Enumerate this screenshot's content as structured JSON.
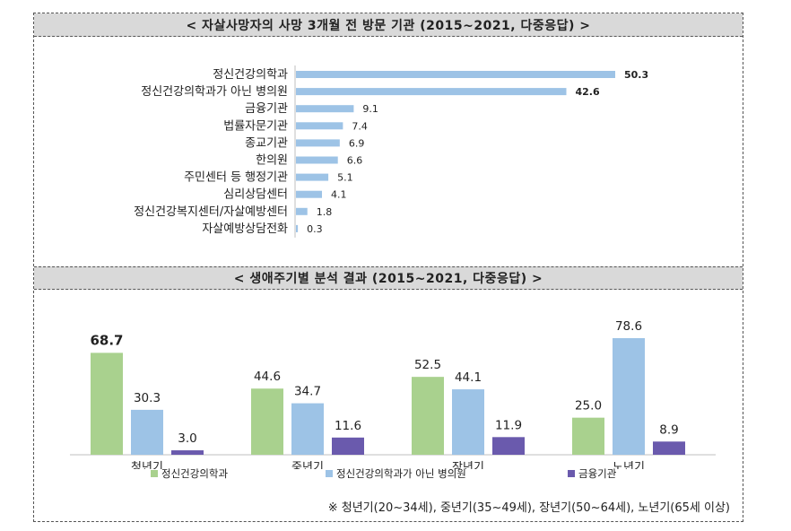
{
  "chart_data": [
    {
      "type": "bar",
      "orientation": "horizontal",
      "title": "< 자살사망자의 사망 3개월 전 방문 기관 (2015~2021, 다중응답) >",
      "categories": [
        "정신건강의학과",
        "정신건강의학과가 아닌 병의원",
        "금융기관",
        "법률자문기관",
        "종교기관",
        "한의원",
        "주민센터 등 행정기관",
        "심리상담센터",
        "정신건강복지센터/자살예방센터",
        "자살예방상담전화"
      ],
      "values": [
        50.3,
        42.6,
        9.1,
        7.4,
        6.9,
        6.6,
        5.1,
        4.1,
        1.8,
        0.3
      ],
      "value_labels": [
        "50.3",
        "42.6",
        "9.1",
        "7.4",
        "6.9",
        "6.6",
        "5.1",
        "4.1",
        "1.8",
        "0.3"
      ],
      "bold_top_labels": 2,
      "xlim": [
        0,
        55
      ],
      "color": "#9dc3e6"
    },
    {
      "type": "bar",
      "title": "< 생애주기별 분석 결과 (2015~2021, 다중응답) >",
      "categories": [
        "청년기",
        "중년기",
        "장년기",
        "노년기"
      ],
      "series": [
        {
          "name": "정신건강의학과",
          "values": [
            68.7,
            44.6,
            52.5,
            25.0
          ],
          "labels": [
            "68.7",
            "44.6",
            "52.5",
            "25.0"
          ],
          "color": "#a9d18e"
        },
        {
          "name": "정신건강의학과가 아닌 병의원",
          "values": [
            30.3,
            34.7,
            44.1,
            78.6
          ],
          "labels": [
            "30.3",
            "34.7",
            "44.1",
            "78.6"
          ],
          "color": "#9dc3e6"
        },
        {
          "name": "금융기관",
          "values": [
            3.0,
            11.6,
            11.9,
            8.9
          ],
          "labels": [
            "3.0",
            "11.6",
            "11.9",
            "8.9"
          ],
          "color": "#6a5aad"
        }
      ],
      "ylim": [
        0,
        82
      ],
      "legend": "bottom",
      "note": "※ 청년기(20~34세), 중년기(35~49세), 장년기(50~64세), 노년기(65세 이상)"
    }
  ]
}
